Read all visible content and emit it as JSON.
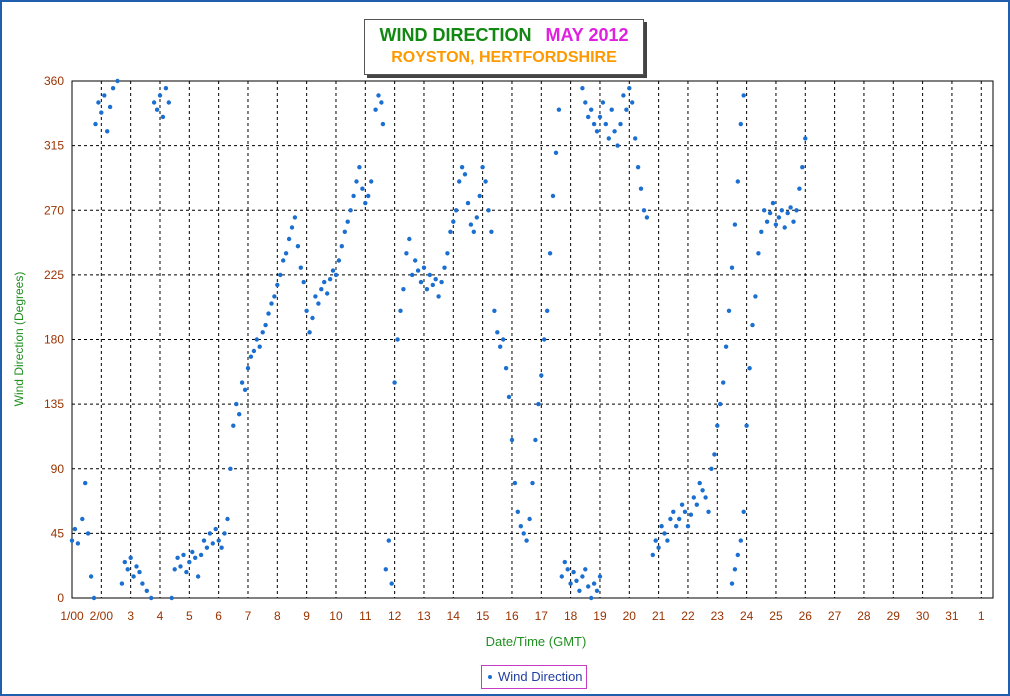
{
  "window": {
    "border_color": "#1f5fae"
  },
  "title": {
    "main": "WIND DIRECTION",
    "month": "MAY 2012",
    "location": "ROYSTON, HERTFORDSHIRE",
    "colors": {
      "main": "#118811",
      "month": "#e020e0",
      "location": "#ff9900"
    }
  },
  "legend": {
    "label": "Wind Direction"
  },
  "chart_data": {
    "type": "scatter",
    "title": "WIND DIRECTION",
    "subtitle": "ROYSTON, HERTFORDSHIRE",
    "xlabel": "Date/Time (GMT)",
    "ylabel": "Wind Direction (Degrees)",
    "ylim": [
      0,
      360
    ],
    "yticks": [
      0,
      45,
      90,
      135,
      180,
      225,
      270,
      315,
      360
    ],
    "xlim_days": [
      1,
      32.4
    ],
    "xtick_labels": [
      "1/00",
      "2/00",
      "3",
      "4",
      "5",
      "6",
      "7",
      "8",
      "9",
      "10",
      "11",
      "12",
      "13",
      "14",
      "15",
      "16",
      "17",
      "18",
      "19",
      "20",
      "21",
      "22",
      "23",
      "24",
      "25",
      "26",
      "27",
      "28",
      "29",
      "30",
      "31",
      "1"
    ],
    "grid": true,
    "legend_position": "bottom-center",
    "colors": {
      "series": "#1a6fd1",
      "axis_labels": "#993300",
      "xlabel": "#1f8f1f",
      "ylabel": "#1f8f1f",
      "grid": "#000000"
    },
    "series": [
      {
        "name": "Wind Direction",
        "points": [
          [
            1.0,
            40
          ],
          [
            1.1,
            48
          ],
          [
            1.2,
            38
          ],
          [
            1.35,
            55
          ],
          [
            1.45,
            80
          ],
          [
            1.55,
            45
          ],
          [
            1.65,
            15
          ],
          [
            1.75,
            0
          ],
          [
            1.8,
            330
          ],
          [
            1.9,
            345
          ],
          [
            2.0,
            338
          ],
          [
            2.1,
            350
          ],
          [
            2.2,
            325
          ],
          [
            2.3,
            342
          ],
          [
            2.4,
            355
          ],
          [
            2.55,
            360
          ],
          [
            2.7,
            10
          ],
          [
            2.8,
            25
          ],
          [
            2.9,
            20
          ],
          [
            3.0,
            28
          ],
          [
            3.1,
            15
          ],
          [
            3.2,
            22
          ],
          [
            3.3,
            18
          ],
          [
            3.4,
            10
          ],
          [
            3.55,
            5
          ],
          [
            3.7,
            0
          ],
          [
            3.8,
            345
          ],
          [
            3.9,
            340
          ],
          [
            4.0,
            350
          ],
          [
            4.1,
            335
          ],
          [
            4.2,
            355
          ],
          [
            4.3,
            345
          ],
          [
            4.4,
            0
          ],
          [
            4.5,
            20
          ],
          [
            4.6,
            28
          ],
          [
            4.7,
            22
          ],
          [
            4.8,
            30
          ],
          [
            4.9,
            18
          ],
          [
            5.0,
            25
          ],
          [
            5.1,
            32
          ],
          [
            5.2,
            28
          ],
          [
            5.3,
            15
          ],
          [
            5.4,
            30
          ],
          [
            5.5,
            40
          ],
          [
            5.6,
            35
          ],
          [
            5.7,
            45
          ],
          [
            5.8,
            38
          ],
          [
            5.9,
            48
          ],
          [
            6.0,
            40
          ],
          [
            6.1,
            35
          ],
          [
            6.2,
            45
          ],
          [
            6.3,
            55
          ],
          [
            6.4,
            90
          ],
          [
            6.5,
            120
          ],
          [
            6.6,
            135
          ],
          [
            6.7,
            128
          ],
          [
            6.8,
            150
          ],
          [
            6.9,
            145
          ],
          [
            7.0,
            160
          ],
          [
            7.1,
            168
          ],
          [
            7.2,
            172
          ],
          [
            7.3,
            180
          ],
          [
            7.4,
            175
          ],
          [
            7.5,
            185
          ],
          [
            7.6,
            190
          ],
          [
            7.7,
            198
          ],
          [
            7.8,
            205
          ],
          [
            7.9,
            210
          ],
          [
            8.0,
            218
          ],
          [
            8.1,
            225
          ],
          [
            8.2,
            235
          ],
          [
            8.3,
            240
          ],
          [
            8.4,
            250
          ],
          [
            8.5,
            258
          ],
          [
            8.6,
            265
          ],
          [
            8.7,
            245
          ],
          [
            8.8,
            230
          ],
          [
            8.9,
            220
          ],
          [
            9.0,
            200
          ],
          [
            9.1,
            185
          ],
          [
            9.2,
            195
          ],
          [
            9.3,
            210
          ],
          [
            9.4,
            205
          ],
          [
            9.5,
            215
          ],
          [
            9.6,
            220
          ],
          [
            9.7,
            212
          ],
          [
            9.8,
            222
          ],
          [
            9.9,
            228
          ],
          [
            10.0,
            225
          ],
          [
            10.1,
            235
          ],
          [
            10.2,
            245
          ],
          [
            10.3,
            255
          ],
          [
            10.4,
            262
          ],
          [
            10.5,
            270
          ],
          [
            10.6,
            280
          ],
          [
            10.7,
            290
          ],
          [
            10.8,
            300
          ],
          [
            10.9,
            285
          ],
          [
            11.0,
            275
          ],
          [
            11.1,
            280
          ],
          [
            11.2,
            290
          ],
          [
            11.35,
            340
          ],
          [
            11.45,
            350
          ],
          [
            11.55,
            345
          ],
          [
            11.6,
            330
          ],
          [
            11.7,
            20
          ],
          [
            11.8,
            40
          ],
          [
            11.9,
            10
          ],
          [
            12.0,
            150
          ],
          [
            12.1,
            180
          ],
          [
            12.2,
            200
          ],
          [
            12.3,
            215
          ],
          [
            12.4,
            240
          ],
          [
            12.5,
            250
          ],
          [
            12.6,
            225
          ],
          [
            12.7,
            235
          ],
          [
            12.8,
            228
          ],
          [
            12.9,
            220
          ],
          [
            13.0,
            230
          ],
          [
            13.1,
            215
          ],
          [
            13.2,
            225
          ],
          [
            13.3,
            218
          ],
          [
            13.4,
            222
          ],
          [
            13.5,
            210
          ],
          [
            13.6,
            220
          ],
          [
            13.7,
            230
          ],
          [
            13.8,
            240
          ],
          [
            13.9,
            255
          ],
          [
            14.0,
            262
          ],
          [
            14.1,
            270
          ],
          [
            14.2,
            290
          ],
          [
            14.3,
            300
          ],
          [
            14.4,
            295
          ],
          [
            14.5,
            275
          ],
          [
            14.6,
            260
          ],
          [
            14.7,
            255
          ],
          [
            14.8,
            265
          ],
          [
            14.9,
            280
          ],
          [
            15.0,
            300
          ],
          [
            15.1,
            290
          ],
          [
            15.2,
            270
          ],
          [
            15.3,
            255
          ],
          [
            15.4,
            200
          ],
          [
            15.5,
            185
          ],
          [
            15.6,
            175
          ],
          [
            15.7,
            180
          ],
          [
            15.8,
            160
          ],
          [
            15.9,
            140
          ],
          [
            16.0,
            110
          ],
          [
            16.1,
            80
          ],
          [
            16.2,
            60
          ],
          [
            16.3,
            50
          ],
          [
            16.4,
            45
          ],
          [
            16.5,
            40
          ],
          [
            16.6,
            55
          ],
          [
            16.7,
            80
          ],
          [
            16.8,
            110
          ],
          [
            16.9,
            135
          ],
          [
            17.0,
            155
          ],
          [
            17.1,
            180
          ],
          [
            17.2,
            200
          ],
          [
            17.3,
            240
          ],
          [
            17.4,
            280
          ],
          [
            17.5,
            310
          ],
          [
            17.6,
            340
          ],
          [
            17.7,
            15
          ],
          [
            17.8,
            25
          ],
          [
            17.9,
            20
          ],
          [
            18.0,
            10
          ],
          [
            18.1,
            18
          ],
          [
            18.2,
            12
          ],
          [
            18.3,
            5
          ],
          [
            18.4,
            15
          ],
          [
            18.5,
            20
          ],
          [
            18.6,
            8
          ],
          [
            18.7,
            0
          ],
          [
            18.8,
            10
          ],
          [
            18.9,
            5
          ],
          [
            19.0,
            15
          ],
          [
            18.4,
            355
          ],
          [
            18.5,
            345
          ],
          [
            18.6,
            335
          ],
          [
            18.7,
            340
          ],
          [
            18.8,
            330
          ],
          [
            18.9,
            325
          ],
          [
            19.0,
            335
          ],
          [
            19.1,
            345
          ],
          [
            19.2,
            330
          ],
          [
            19.3,
            320
          ],
          [
            19.4,
            340
          ],
          [
            19.5,
            325
          ],
          [
            19.6,
            315
          ],
          [
            19.7,
            330
          ],
          [
            19.8,
            350
          ],
          [
            19.9,
            340
          ],
          [
            20.0,
            355
          ],
          [
            20.1,
            345
          ],
          [
            20.2,
            320
          ],
          [
            20.3,
            300
          ],
          [
            20.4,
            285
          ],
          [
            20.5,
            270
          ],
          [
            20.6,
            265
          ],
          [
            20.8,
            30
          ],
          [
            20.9,
            40
          ],
          [
            21.0,
            35
          ],
          [
            21.1,
            50
          ],
          [
            21.2,
            45
          ],
          [
            21.3,
            40
          ],
          [
            21.4,
            55
          ],
          [
            21.5,
            60
          ],
          [
            21.6,
            50
          ],
          [
            21.7,
            55
          ],
          [
            21.8,
            65
          ],
          [
            21.9,
            60
          ],
          [
            22.0,
            50
          ],
          [
            22.1,
            58
          ],
          [
            22.2,
            70
          ],
          [
            22.3,
            65
          ],
          [
            22.4,
            80
          ],
          [
            22.5,
            75
          ],
          [
            22.6,
            70
          ],
          [
            22.7,
            60
          ],
          [
            22.8,
            90
          ],
          [
            22.9,
            100
          ],
          [
            23.0,
            120
          ],
          [
            23.1,
            135
          ],
          [
            23.2,
            150
          ],
          [
            23.3,
            175
          ],
          [
            23.4,
            200
          ],
          [
            23.5,
            230
          ],
          [
            23.6,
            260
          ],
          [
            23.7,
            290
          ],
          [
            23.8,
            330
          ],
          [
            23.9,
            350
          ],
          [
            23.5,
            10
          ],
          [
            23.6,
            20
          ],
          [
            23.7,
            30
          ],
          [
            23.8,
            40
          ],
          [
            23.9,
            60
          ],
          [
            24.0,
            120
          ],
          [
            24.1,
            160
          ],
          [
            24.2,
            190
          ],
          [
            24.3,
            210
          ],
          [
            24.4,
            240
          ],
          [
            24.5,
            255
          ],
          [
            24.6,
            270
          ],
          [
            24.7,
            262
          ],
          [
            24.8,
            268
          ],
          [
            24.9,
            275
          ],
          [
            25.0,
            260
          ],
          [
            25.1,
            265
          ],
          [
            25.2,
            270
          ],
          [
            25.3,
            258
          ],
          [
            25.4,
            268
          ],
          [
            25.5,
            272
          ],
          [
            25.6,
            262
          ],
          [
            25.7,
            270
          ],
          [
            25.8,
            285
          ],
          [
            25.9,
            300
          ],
          [
            26.0,
            320
          ]
        ]
      }
    ]
  }
}
